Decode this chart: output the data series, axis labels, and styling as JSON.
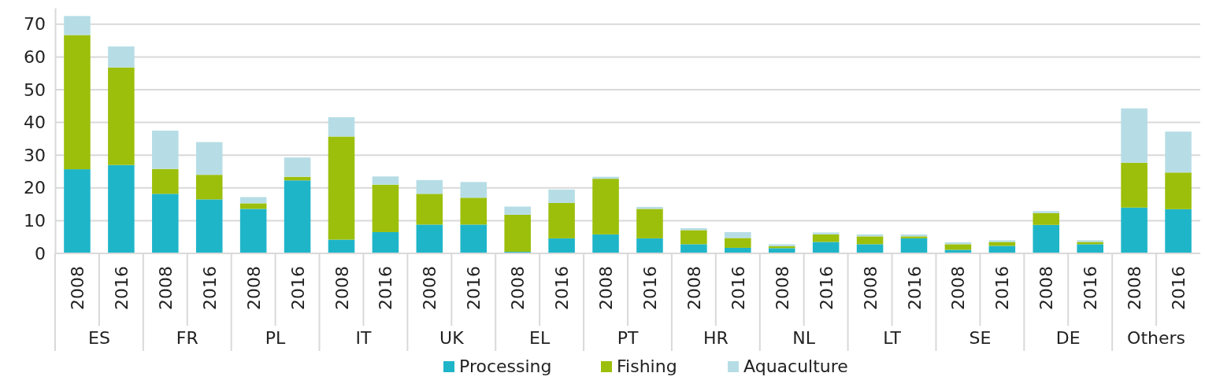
{
  "chart_data": {
    "type": "bar",
    "stacked": true,
    "categories": [
      "2008",
      "2016",
      "2008",
      "2016",
      "2008",
      "2016",
      "2008",
      "2016",
      "2008",
      "2016",
      "2008",
      "2016",
      "2008",
      "2016",
      "2008",
      "2016",
      "2008",
      "2016",
      "2008",
      "2016",
      "2008",
      "2016",
      "2008",
      "2016",
      "2008",
      "2016"
    ],
    "annotations": [
      "ES",
      "FR",
      "PL",
      "IT",
      "UK",
      "EL",
      "PT",
      "HR",
      "NL",
      "LT",
      "SE",
      "DE",
      "Others"
    ],
    "series": [
      {
        "name": "Processing",
        "color": "#1fb5c9",
        "values": [
          25.7,
          27,
          18.2,
          16.5,
          13.6,
          22.3,
          4.2,
          6.5,
          8.8,
          8.8,
          0.5,
          4.6,
          5.8,
          4.6,
          2.8,
          1.7,
          1.6,
          3.5,
          2.8,
          4.6,
          1.1,
          2.3,
          8.7,
          2.8,
          14,
          13.5
        ]
      },
      {
        "name": "Fishing",
        "color": "#9cbf0b",
        "values": [
          41,
          29.8,
          7.6,
          7.5,
          1.7,
          1.1,
          31.5,
          14.5,
          9.4,
          8.2,
          11.3,
          10.8,
          17,
          9,
          4.3,
          3,
          0.6,
          2.3,
          2.4,
          0.6,
          1.7,
          1.2,
          3.6,
          0.7,
          13.7,
          11.2
        ]
      },
      {
        "name": "Aquaculture",
        "color": "#b6dde5",
        "values": [
          5.8,
          6.4,
          11.7,
          10,
          1.9,
          5.9,
          5.9,
          2.5,
          4.2,
          4.8,
          2.5,
          4.1,
          0.6,
          0.6,
          0.6,
          1.8,
          0.6,
          0.6,
          0.6,
          0.6,
          0.6,
          0.5,
          0.6,
          0.5,
          16.6,
          12.5
        ]
      }
    ],
    "ylim": [
      0,
      75
    ],
    "yticks": [
      0,
      10,
      20,
      30,
      40,
      50,
      60,
      70
    ],
    "grid": "y",
    "legend": "bottom"
  }
}
